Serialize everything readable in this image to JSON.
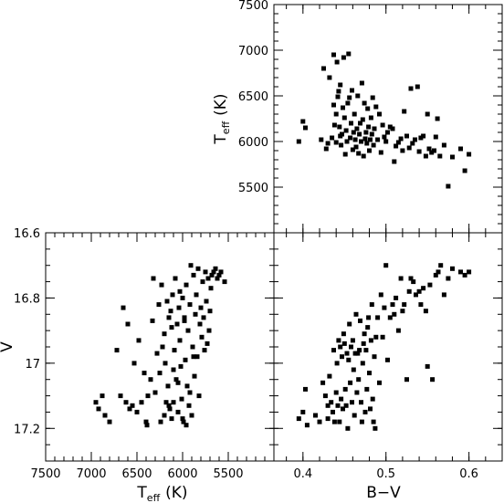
{
  "chart_data": [
    {
      "id": "teff_vs_bv",
      "type": "scatter",
      "xlabel": "",
      "ylabel_main": "T",
      "ylabel_sub": "eff",
      "ylabel_unit": "(K)",
      "xlim": [
        0.365,
        0.64
      ],
      "ylim": [
        5000,
        7500
      ],
      "yticks": [
        5500,
        6000,
        6500,
        7000,
        7500
      ],
      "yticklabels": [
        "5500",
        "6000",
        "6500",
        "7000",
        "7500"
      ],
      "x": [
        0.395,
        0.4,
        0.403,
        0.422,
        0.425,
        0.428,
        0.43,
        0.432,
        0.435,
        0.437,
        0.437,
        0.438,
        0.44,
        0.44,
        0.441,
        0.442,
        0.443,
        0.444,
        0.445,
        0.445,
        0.446,
        0.447,
        0.448,
        0.449,
        0.45,
        0.451,
        0.452,
        0.453,
        0.454,
        0.455,
        0.456,
        0.457,
        0.458,
        0.459,
        0.46,
        0.461,
        0.462,
        0.463,
        0.464,
        0.465,
        0.466,
        0.467,
        0.468,
        0.469,
        0.47,
        0.471,
        0.472,
        0.473,
        0.474,
        0.475,
        0.476,
        0.477,
        0.478,
        0.479,
        0.48,
        0.481,
        0.482,
        0.483,
        0.484,
        0.485,
        0.486,
        0.488,
        0.49,
        0.492,
        0.494,
        0.496,
        0.498,
        0.5,
        0.502,
        0.505,
        0.508,
        0.51,
        0.512,
        0.515,
        0.518,
        0.52,
        0.522,
        0.525,
        0.528,
        0.53,
        0.532,
        0.535,
        0.538,
        0.54,
        0.542,
        0.545,
        0.548,
        0.55,
        0.552,
        0.555,
        0.558,
        0.56,
        0.562,
        0.565,
        0.57,
        0.575,
        0.58,
        0.59,
        0.595,
        0.6
      ],
      "y": [
        6000,
        6220,
        6150,
        6020,
        6800,
        5920,
        5980,
        6700,
        6040,
        6950,
        6400,
        6180,
        5990,
        6300,
        6870,
        6490,
        6550,
        6160,
        6060,
        6620,
        5960,
        6080,
        6370,
        6920,
        6260,
        5860,
        6120,
        6000,
        6420,
        6960,
        6480,
        6040,
        6200,
        6560,
        5910,
        6100,
        6300,
        6020,
        5940,
        6140,
        6500,
        5870,
        6080,
        6200,
        6000,
        6640,
        6240,
        5840,
        6420,
        6030,
        6100,
        5980,
        6360,
        6160,
        5900,
        6020,
        6260,
        6080,
        6480,
        5960,
        6140,
        6380,
        6020,
        6300,
        5880,
        6180,
        6050,
        6000,
        6100,
        6160,
        6140,
        5780,
        5950,
        5990,
        6030,
        5900,
        6330,
        6060,
        5930,
        6580,
        5980,
        6020,
        6600,
        5890,
        6040,
        6060,
        5840,
        6300,
        5920,
        5880,
        5900,
        6050,
        6250,
        5840,
        5960,
        5510,
        5830,
        5920,
        5680,
        5860
      ]
    },
    {
      "id": "v_vs_teff",
      "type": "scatter",
      "xlabel_main": "T",
      "xlabel_sub": "eff",
      "xlabel_unit": "(K)",
      "ylabel": "V",
      "xlim": [
        7500,
        5000
      ],
      "ylim": [
        17.3,
        16.6
      ],
      "xticks": [
        7500,
        7000,
        6500,
        6000,
        5500
      ],
      "xticklabels": [
        "7500",
        "7000",
        "6500",
        "6000",
        "5500"
      ],
      "yticks": [
        16.6,
        16.8,
        17.0,
        17.2
      ],
      "yticklabels": [
        "16.6",
        "16.8",
        "17",
        "17.2"
      ],
      "x": [
        6950,
        6920,
        6880,
        6850,
        6800,
        6720,
        6680,
        6650,
        6620,
        6600,
        6580,
        6550,
        6530,
        6500,
        6480,
        6450,
        6420,
        6400,
        6390,
        6380,
        6350,
        6330,
        6320,
        6300,
        6280,
        6260,
        6250,
        6230,
        6220,
        6200,
        6190,
        6180,
        6170,
        6160,
        6150,
        6140,
        6130,
        6120,
        6110,
        6100,
        6090,
        6080,
        6070,
        6060,
        6050,
        6040,
        6030,
        6020,
        6010,
        6000,
        5990,
        5980,
        5970,
        5960,
        5950,
        5940,
        5930,
        5920,
        5910,
        5900,
        5890,
        5880,
        5870,
        5860,
        5850,
        5840,
        5830,
        5820,
        5810,
        5800,
        5790,
        5780,
        5770,
        5760,
        5750,
        5740,
        5730,
        5720,
        5710,
        5700,
        5690,
        5680,
        5660,
        5640,
        5620,
        5600,
        5580,
        5540,
        6000,
        5960,
        6240,
        6100,
        5920,
        5880,
        6050,
        6150,
        6200,
        6030,
        5980,
        6120
      ],
      "y": [
        17.12,
        17.14,
        17.1,
        17.16,
        17.18,
        16.96,
        17.1,
        16.83,
        17.12,
        16.88,
        17.14,
        17.13,
        17.0,
        17.15,
        16.93,
        17.12,
        17.03,
        17.18,
        17.19,
        17.1,
        17.05,
        16.87,
        16.74,
        17.09,
        16.97,
        16.82,
        17.03,
        16.76,
        16.95,
        16.91,
        17.0,
        17.12,
        16.81,
        17.07,
        16.86,
        17.14,
        16.84,
        17.17,
        16.79,
        17.02,
        16.96,
        16.74,
        17.05,
        16.88,
        17.15,
        16.83,
        16.93,
        17.01,
        17.11,
        16.8,
        17.18,
        16.87,
        16.99,
        16.76,
        17.07,
        16.9,
        17.13,
        16.82,
        16.7,
        17.16,
        16.95,
        16.73,
        17.04,
        16.85,
        16.79,
        16.98,
        16.71,
        17.1,
        16.88,
        16.83,
        16.92,
        16.75,
        16.86,
        16.96,
        16.72,
        16.81,
        16.94,
        16.74,
        16.9,
        16.84,
        16.77,
        16.73,
        16.72,
        16.71,
        16.74,
        16.73,
        16.72,
        16.75,
        17.17,
        17.19,
        17.18,
        17.12,
        17.09,
        16.98,
        17.06,
        17.13,
        17.16,
        16.78,
        16.86,
        16.89
      ]
    },
    {
      "id": "v_vs_bv",
      "type": "scatter",
      "xlabel": "B−V",
      "ylabel": "",
      "xlim": [
        0.365,
        0.64
      ],
      "ylim": [
        17.3,
        16.6
      ],
      "xticks": [
        0.4,
        0.5,
        0.6
      ],
      "xticklabels": [
        "0.4",
        "0.5",
        "0.6"
      ],
      "x": [
        0.395,
        0.4,
        0.403,
        0.42,
        0.424,
        0.427,
        0.43,
        0.432,
        0.434,
        0.436,
        0.437,
        0.438,
        0.44,
        0.441,
        0.442,
        0.443,
        0.444,
        0.445,
        0.446,
        0.447,
        0.448,
        0.449,
        0.45,
        0.451,
        0.452,
        0.453,
        0.454,
        0.455,
        0.456,
        0.457,
        0.458,
        0.459,
        0.46,
        0.461,
        0.462,
        0.463,
        0.464,
        0.465,
        0.466,
        0.467,
        0.468,
        0.469,
        0.47,
        0.471,
        0.472,
        0.473,
        0.474,
        0.475,
        0.476,
        0.477,
        0.478,
        0.479,
        0.48,
        0.481,
        0.482,
        0.483,
        0.484,
        0.485,
        0.486,
        0.487,
        0.488,
        0.49,
        0.492,
        0.494,
        0.496,
        0.498,
        0.5,
        0.502,
        0.505,
        0.508,
        0.51,
        0.512,
        0.515,
        0.518,
        0.52,
        0.522,
        0.525,
        0.528,
        0.53,
        0.533,
        0.536,
        0.54,
        0.542,
        0.545,
        0.548,
        0.55,
        0.553,
        0.556,
        0.56,
        0.563,
        0.566,
        0.57,
        0.575,
        0.58,
        0.59,
        0.595,
        0.6,
        0.405,
        0.415,
        0.43
      ],
      "y": [
        17.17,
        17.15,
        17.08,
        17.18,
        17.06,
        17.1,
        17.17,
        17.04,
        17.12,
        17.15,
        16.96,
        17.18,
        17.09,
        17.0,
        17.13,
        16.93,
        17.18,
        16.95,
        17.11,
        16.98,
        17.14,
        16.91,
        16.94,
        17.08,
        17.13,
        16.97,
        17.2,
        16.99,
        16.88,
        17.06,
        16.95,
        17.12,
        16.93,
        17.02,
        17.16,
        16.97,
        16.85,
        17.09,
        16.97,
        17.05,
        16.96,
        16.87,
        17.12,
        17.18,
        17.0,
        16.94,
        16.91,
        17.15,
        16.96,
        17.08,
        16.89,
        16.86,
        17.03,
        17.14,
        16.93,
        16.82,
        17.11,
        17.18,
        16.98,
        17.2,
        16.92,
        16.86,
        17.06,
        16.79,
        16.92,
        16.83,
        16.7,
        16.99,
        16.86,
        16.82,
        16.85,
        16.8,
        16.9,
        16.74,
        16.84,
        16.82,
        17.05,
        16.78,
        16.74,
        16.75,
        16.79,
        16.78,
        16.82,
        16.77,
        16.84,
        17.01,
        16.76,
        17.05,
        16.73,
        16.72,
        16.7,
        16.79,
        16.74,
        16.71,
        16.72,
        16.73,
        16.72,
        17.19,
        17.16,
        17.13
      ]
    }
  ]
}
